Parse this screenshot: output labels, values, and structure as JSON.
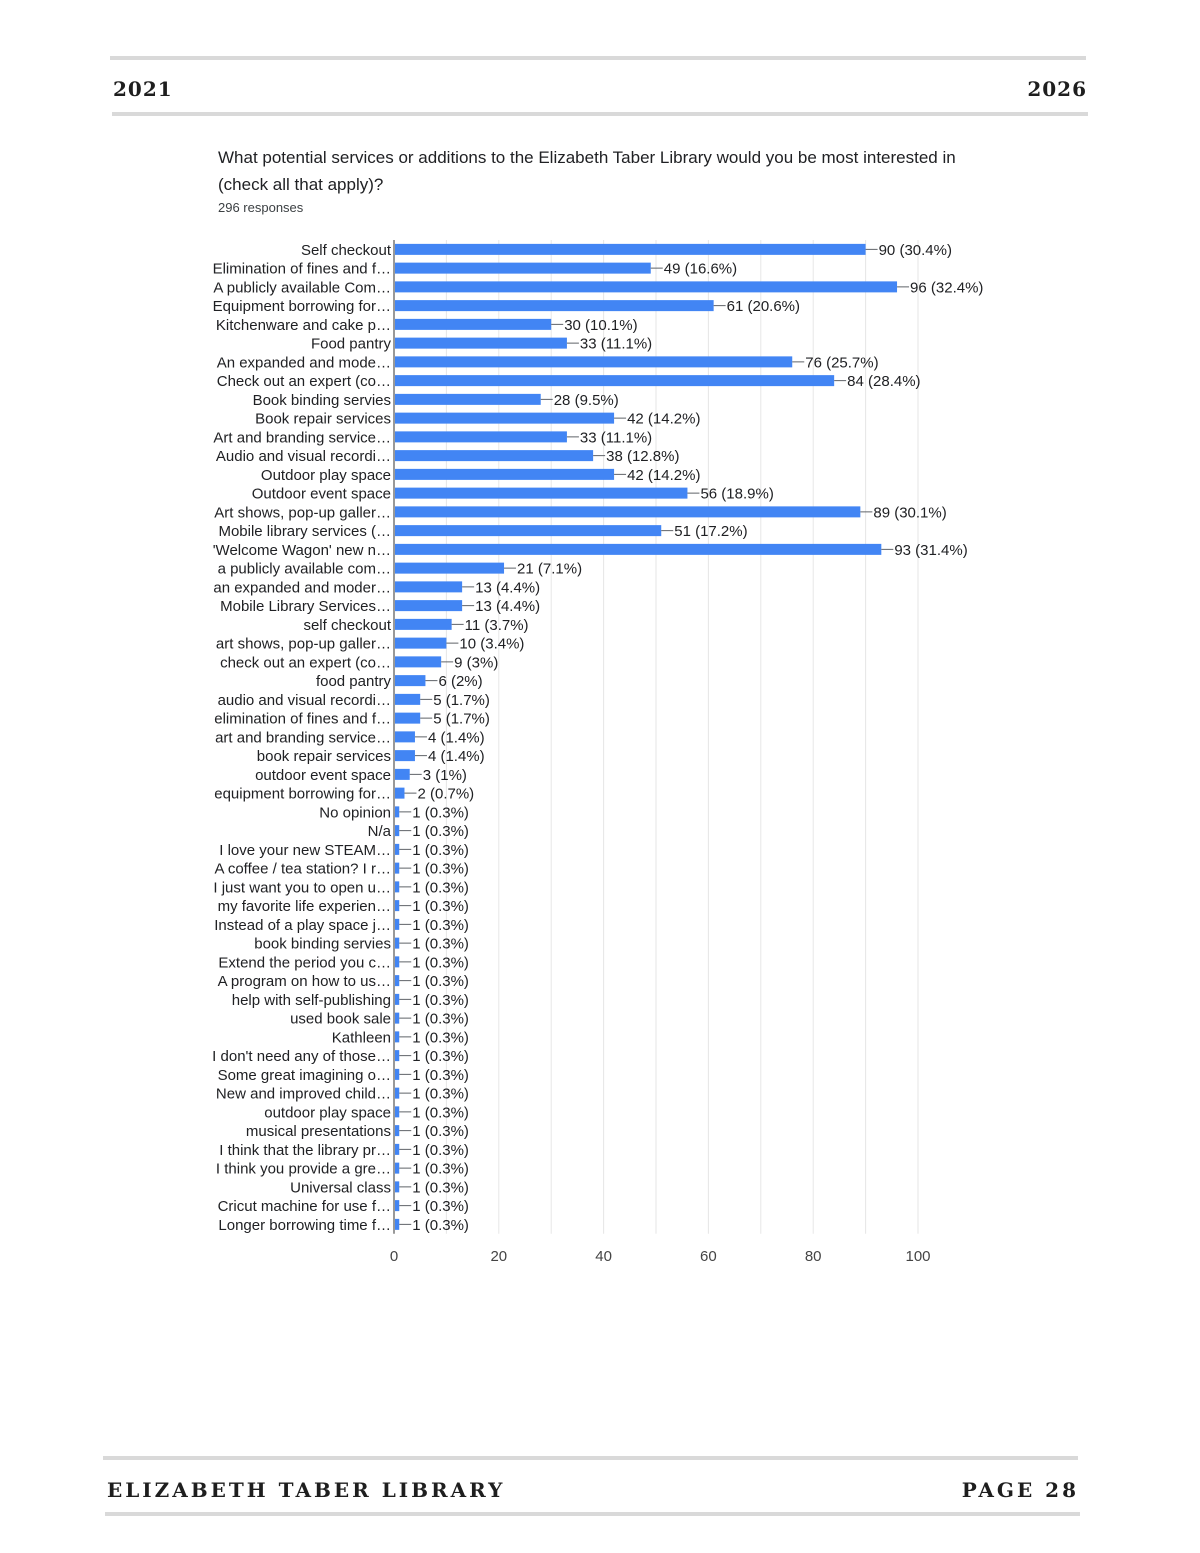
{
  "header": {
    "year_left": "2021",
    "year_right": "2026"
  },
  "footer": {
    "library_name": "ELIZABETH TABER LIBRARY",
    "page_label": "PAGE 28"
  },
  "colors": {
    "bar": "#4285f4",
    "rule": "#d9d9d9",
    "grid": "#e6e6e6"
  },
  "chart_data": {
    "type": "bar",
    "orientation": "horizontal",
    "title": "What potential services or additions to the Elizabeth Taber Library would you be most interested in (check all that apply)?",
    "subtitle": "296 responses",
    "xlim": [
      0,
      100
    ],
    "xticks": [
      0,
      20,
      40,
      60,
      80,
      100
    ],
    "grid": true,
    "categories": [
      "Self checkout",
      "Elimination of fines and f…",
      "A publicly available Com…",
      "Equipment borrowing for…",
      "Kitchenware and cake p…",
      "Food pantry",
      "An expanded and mode…",
      "Check out an expert (co…",
      "Book binding servies",
      "Book repair services",
      "Art and branding service…",
      "Audio and visual recordi…",
      "Outdoor play space",
      "Outdoor event space",
      "Art shows, pop-up galler…",
      "Mobile library services (…",
      "'Welcome Wagon' new n…",
      "a publicly available com…",
      "an expanded and moder…",
      "Mobile Library Services…",
      "self checkout",
      "art shows, pop-up galler…",
      "check out an expert (co…",
      "food pantry",
      "audio and visual recordi…",
      "elimination of fines and f…",
      "art and branding service…",
      "book repair services",
      "outdoor event space",
      "equipment borrowing for…",
      "No opinion",
      "N/a",
      "I love your new STEAM…",
      "A coffee / tea station? I r…",
      "I just want you to open u…",
      "my favorite life experien…",
      "Instead of a play space j…",
      "book binding servies",
      "Extend the period you c…",
      "A program on how to us…",
      "help with self-publishing",
      "used book sale",
      "Kathleen",
      "I don't need any of those…",
      "Some great imagining o…",
      "New and improved child…",
      "outdoor play space",
      "musical presentations",
      "I think that the library pr…",
      "I think you provide a gre…",
      "Universal class",
      "Cricut machine for use f…",
      "Longer borrowing time f…"
    ],
    "values": [
      90,
      49,
      96,
      61,
      30,
      33,
      76,
      84,
      28,
      42,
      33,
      38,
      42,
      56,
      89,
      51,
      93,
      21,
      13,
      13,
      11,
      10,
      9,
      6,
      5,
      5,
      4,
      4,
      3,
      2,
      1,
      1,
      1,
      1,
      1,
      1,
      1,
      1,
      1,
      1,
      1,
      1,
      1,
      1,
      1,
      1,
      1,
      1,
      1,
      1,
      1,
      1,
      1
    ],
    "data_labels": [
      "90 (30.4%)",
      "49 (16.6%)",
      "96 (32.4%)",
      "61 (20.6%)",
      "30 (10.1%)",
      "33 (11.1%)",
      "76 (25.7%)",
      "84 (28.4%)",
      "28 (9.5%)",
      "42 (14.2%)",
      "33 (11.1%)",
      "38 (12.8%)",
      "42 (14.2%)",
      "56 (18.9%)",
      "89 (30.1%)",
      "51 (17.2%)",
      "93 (31.4%)",
      "21 (7.1%)",
      "13 (4.4%)",
      "13 (4.4%)",
      "11 (3.7%)",
      "10 (3.4%)",
      "9 (3%)",
      "6 (2%)",
      "5 (1.7%)",
      "5 (1.7%)",
      "4 (1.4%)",
      "4 (1.4%)",
      "3 (1%)",
      "2 (0.7%)",
      "1 (0.3%)",
      "1 (0.3%)",
      "1 (0.3%)",
      "1 (0.3%)",
      "1 (0.3%)",
      "1 (0.3%)",
      "1 (0.3%)",
      "1 (0.3%)",
      "1 (0.3%)",
      "1 (0.3%)",
      "1 (0.3%)",
      "1 (0.3%)",
      "1 (0.3%)",
      "1 (0.3%)",
      "1 (0.3%)",
      "1 (0.3%)",
      "1 (0.3%)",
      "1 (0.3%)",
      "1 (0.3%)",
      "1 (0.3%)",
      "1 (0.3%)",
      "1 (0.3%)",
      "1 (0.3%)"
    ]
  }
}
